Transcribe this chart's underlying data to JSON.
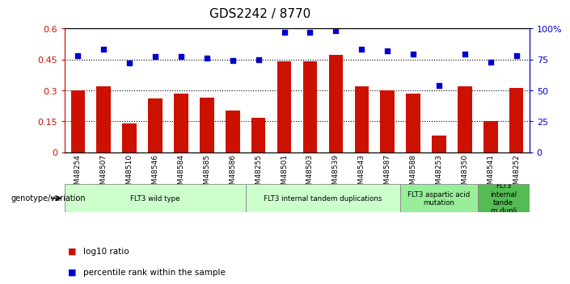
{
  "title": "GDS2242 / 8770",
  "samples": [
    "GSM48254",
    "GSM48507",
    "GSM48510",
    "GSM48546",
    "GSM48584",
    "GSM48585",
    "GSM48586",
    "GSM48255",
    "GSM48501",
    "GSM48503",
    "GSM48539",
    "GSM48543",
    "GSM48587",
    "GSM48588",
    "GSM48253",
    "GSM48350",
    "GSM48541",
    "GSM48252"
  ],
  "log10_ratio": [
    0.3,
    0.32,
    0.14,
    0.26,
    0.285,
    0.265,
    0.2,
    0.165,
    0.44,
    0.44,
    0.47,
    0.32,
    0.3,
    0.285,
    0.08,
    0.32,
    0.15,
    0.31
  ],
  "percentile_rank": [
    78,
    83,
    72,
    77,
    77,
    76,
    74,
    75,
    97,
    97,
    98,
    83,
    82,
    79,
    54,
    79,
    73,
    78
  ],
  "bar_color": "#cc1100",
  "dot_color": "#0000cc",
  "ylim_left": [
    0,
    0.6
  ],
  "ylim_right": [
    0,
    100
  ],
  "yticks_left": [
    0,
    0.15,
    0.3,
    0.45,
    0.6
  ],
  "yticks_right": [
    0,
    25,
    50,
    75,
    100
  ],
  "ytick_labels_left": [
    "0",
    "0.15",
    "0.3",
    "0.45",
    "0.6"
  ],
  "ytick_labels_right": [
    "0",
    "25",
    "50",
    "75",
    "100%"
  ],
  "groups": [
    {
      "label": "FLT3 wild type",
      "start": 0,
      "end": 7,
      "color": "#ccffcc"
    },
    {
      "label": "FLT3 internal tandem duplications",
      "start": 7,
      "end": 13,
      "color": "#ccffcc"
    },
    {
      "label": "FLT3 aspartic acid\nmutation",
      "start": 13,
      "end": 16,
      "color": "#99ee99"
    },
    {
      "label": "FLT3\ninternal\ntande\nm dupli",
      "start": 16,
      "end": 18,
      "color": "#55bb55"
    }
  ],
  "genotype_label": "genotype/variation",
  "legend_bar_label": "log10 ratio",
  "legend_dot_label": "percentile rank within the sample",
  "left_axis_color": "#cc1100",
  "right_axis_color": "#0000cc",
  "bg_color": "#ffffff"
}
